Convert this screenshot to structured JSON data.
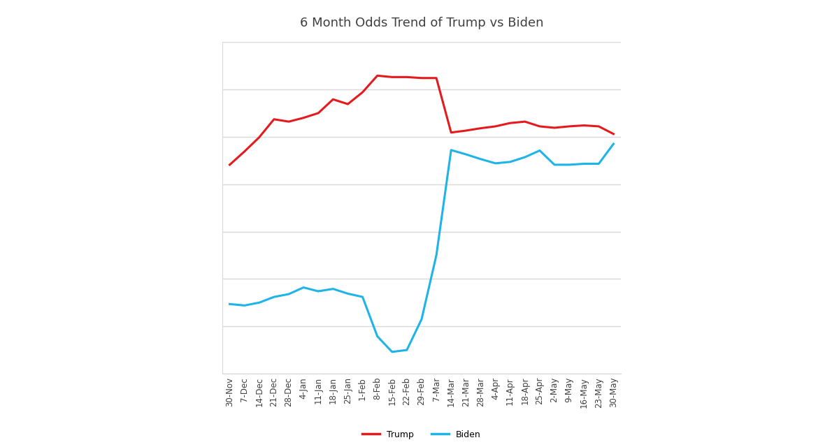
{
  "chart_data": {
    "type": "line",
    "title": "6 Month Odds Trend of Trump vs Biden",
    "categories": [
      "30-Nov",
      "7-Dec",
      "14-Dec",
      "21-Dec",
      "28-Dec",
      "4-Jan",
      "11-Jan",
      "18-Jan",
      "25-Jan",
      "1-Feb",
      "8-Feb",
      "15-Feb",
      "22-Feb",
      "29-Feb",
      "7-Mar",
      "14-Mar",
      "21-Mar",
      "28-Mar",
      "4-Apr",
      "11-Apr",
      "18-Apr",
      "25-Apr",
      "2-May",
      "9-May",
      "16-May",
      "23-May",
      "30-May"
    ],
    "series": [
      {
        "name": "Trump",
        "color": "#e41a1c",
        "values": [
          44.1,
          46.9,
          49.9,
          53.7,
          53.2,
          54.0,
          55.0,
          57.9,
          56.9,
          59.4,
          62.9,
          62.6,
          62.6,
          62.4,
          62.4,
          50.9,
          51.3,
          51.8,
          52.2,
          52.9,
          53.2,
          52.2,
          51.9,
          52.2,
          52.4,
          52.2,
          50.6
        ]
      },
      {
        "name": "Biden",
        "color": "#1fb4e8",
        "values": [
          14.7,
          14.4,
          15.0,
          16.2,
          16.8,
          18.2,
          17.4,
          17.9,
          16.9,
          16.2,
          7.9,
          4.6,
          5.0,
          11.5,
          25.0,
          47.2,
          46.3,
          45.3,
          44.4,
          44.7,
          45.7,
          47.1,
          44.1,
          44.1,
          44.3,
          44.3,
          48.5
        ]
      }
    ],
    "ylim": [
      0,
      70
    ],
    "yticks": [
      0,
      10,
      20,
      30,
      40,
      50,
      60,
      70
    ],
    "grid": true,
    "legend": "bottom",
    "tick_labels": "x"
  }
}
